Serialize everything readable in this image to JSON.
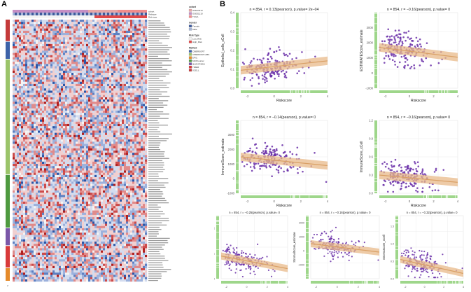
{
  "figure": {
    "panel_a_label": "A",
    "panel_b_label": "B"
  },
  "heatmap": {
    "annotation_tracks": [
      "cohort",
      "Risktype",
      "Risk type"
    ],
    "legend": {
      "cohort_title": "cohort",
      "cohort_items": [
        "GSE13213",
        "GSE31210",
        "TCGA"
      ],
      "gender_title": "Gender",
      "gender_items": [
        "Female",
        "Male"
      ],
      "risk_title": "Risk Type",
      "risk_items": [
        "Low_Risk",
        "High_Risk"
      ],
      "celltype_title": "Method",
      "celltype_items": [
        "CIBERSORT",
        "CIBERSORT-ABS",
        "EPIC",
        "MCPcounter",
        "QUANTISEQ",
        "TIMER",
        "XCELL"
      ]
    },
    "row_groups": [
      {
        "name": "XCELL",
        "color": "#c43a3a",
        "rows": 10
      },
      {
        "name": "CIBERSORT",
        "color": "#3d62a8",
        "rows": 8
      },
      {
        "name": "CIBERSORT-ABS",
        "color": "#9bc46a",
        "rows": 52
      },
      {
        "name": "MCPcounter",
        "color": "#4f9a40",
        "rows": 24
      },
      {
        "name": "QUANTISEQ",
        "color": "#7a57a8",
        "rows": 8
      },
      {
        "name": "TIMER",
        "color": "#d83a3a",
        "rows": 10
      },
      {
        "name": "EPIC",
        "color": "#e58a2a",
        "rows": 6
      }
    ],
    "bottom_label": "z"
  },
  "chart_data": [
    {
      "type": "scatter",
      "title": "n = 854, r = 0.13(pearson), p.value= 2e−04",
      "xlabel": "Riskscore",
      "ylabel": "Epithelial_cells_xCell",
      "xlim": [
        -2.5,
        4
      ],
      "ylim": [
        0,
        0.4
      ],
      "xticks": [
        "-2",
        "0",
        "2",
        "4"
      ],
      "yticks": [
        "0.0",
        "0.1",
        "0.2",
        "0.3",
        "0.4"
      ],
      "trend": {
        "x": [
          -2.5,
          4
        ],
        "y": [
          0.095,
          0.145
        ]
      },
      "seed": 11,
      "n": 180,
      "spread": 0.07,
      "axis_fill": "#9ed68a"
    },
    {
      "type": "scatter",
      "title": "n = 854, r = −0.16(pearson), p.value= 0",
      "xlabel": "Riskscore",
      "ylabel": "ESTIMATEScore_estimate",
      "xlim": [
        -2.5,
        4
      ],
      "ylim": [
        -1000,
        4000
      ],
      "xticks": [
        "-2",
        "0",
        "2",
        "4"
      ],
      "yticks": [
        "-1000",
        "0",
        "1000",
        "2000",
        "3000"
      ],
      "trend": {
        "x": [
          -2.5,
          4
        ],
        "y": [
          1700,
          1050
        ]
      },
      "seed": 23,
      "n": 180,
      "spread": 900,
      "axis_fill": "#9ed68a"
    },
    {
      "type": "scatter",
      "title": "n = 854, r = −0.14(pearson), p.value= 0",
      "xlabel": "Riskscore",
      "ylabel": "ImmuneScore_estimate",
      "xlim": [
        -2.5,
        4
      ],
      "ylim": [
        -1000,
        4000
      ],
      "xticks": [
        "-2",
        "0",
        "2",
        "4"
      ],
      "yticks": [
        "-1000",
        "0",
        "1000",
        "2000",
        "3000"
      ],
      "trend": {
        "x": [
          -2.5,
          4
        ],
        "y": [
          1500,
          900
        ]
      },
      "seed": 37,
      "n": 180,
      "spread": 850,
      "axis_fill": "#9ed68a"
    },
    {
      "type": "scatter",
      "title": "n = 854, r = −0.16(pearson), p.value= 0",
      "xlabel": "Riskscore",
      "ylabel": "ImmuneScore_xCell",
      "xlim": [
        -2.5,
        4
      ],
      "ylim": [
        0,
        1.2
      ],
      "xticks": [
        "-2",
        "0",
        "2",
        "4"
      ],
      "yticks": [
        "0.0",
        "0.3",
        "0.6",
        "0.9",
        "1.2"
      ],
      "trend": {
        "x": [
          -2.5,
          4
        ],
        "y": [
          0.3,
          0.18
        ]
      },
      "seed": 51,
      "n": 180,
      "spread": 0.2,
      "axis_fill": "#9ed68a"
    },
    {
      "type": "scatter",
      "title": "n = 854, r = −0.25(pearson), p.value= 0",
      "xlabel": "Riskscore",
      "ylabel": "Microenvironment Score_xCell",
      "xlim": [
        -2.5,
        4
      ],
      "ylim": [
        0,
        2.5
      ],
      "xticks": [
        "-2",
        "0",
        "2",
        "4"
      ],
      "yticks": [
        "0",
        "1",
        "2"
      ],
      "trend": {
        "x": [
          -2.5,
          4
        ],
        "y": [
          0.9,
          0.4
        ]
      },
      "seed": 63,
      "n": 170,
      "spread": 0.4,
      "axis_fill": "#9ed68a"
    },
    {
      "type": "scatter",
      "title": "n = 854, r = −0.16(pearson), p.value= 0",
      "xlabel": "Riskscore",
      "ylabel": "StromalScore_estimate",
      "xlim": [
        -2.5,
        4
      ],
      "ylim": [
        -2000,
        2500
      ],
      "xticks": [
        "-2",
        "0",
        "2",
        "4"
      ],
      "yticks": [
        "-1000",
        "0",
        "1000",
        "2000"
      ],
      "trend": {
        "x": [
          -2.5,
          4
        ],
        "y": [
          500,
          -100
        ]
      },
      "seed": 77,
      "n": 170,
      "spread": 800,
      "axis_fill": "#9ed68a"
    },
    {
      "type": "scatter",
      "title": "n = 854, r = −0.32(pearson), p.value= 0",
      "xlabel": "Riskscore",
      "ylabel": "StromaScore_xCell",
      "xlim": [
        -2.5,
        4
      ],
      "ylim": [
        0,
        1.8
      ],
      "xticks": [
        "-2",
        "0",
        "2",
        "4"
      ],
      "yticks": [
        "0.0",
        "0.5",
        "1.0",
        "1.5"
      ],
      "trend": {
        "x": [
          -2.5,
          4
        ],
        "y": [
          0.55,
          0.15
        ]
      },
      "seed": 89,
      "n": 170,
      "spread": 0.3,
      "axis_fill": "#9ed68a"
    }
  ]
}
